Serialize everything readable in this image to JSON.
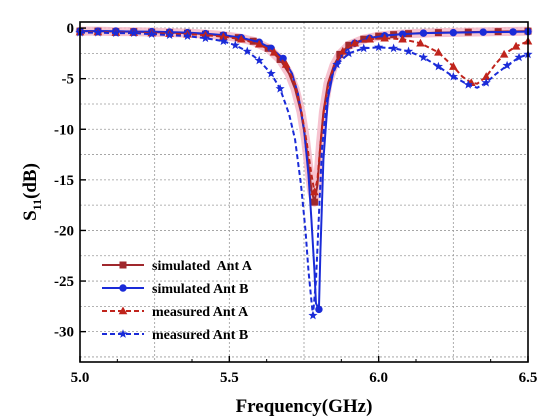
{
  "chart_data": {
    "type": "line",
    "xlabel": "Frequency(GHz)",
    "ylabel_main": "S",
    "ylabel_sub": "11",
    "ylabel_unit": "(dB)",
    "xlim": [
      5.0,
      6.5
    ],
    "ylim": [
      -33,
      0.6
    ],
    "x_ticks": [
      5.0,
      5.5,
      6.0,
      6.5
    ],
    "x_tick_labels": [
      "5.0",
      "5.5",
      "6.0",
      "6.5"
    ],
    "y_ticks": [
      0,
      -5,
      -10,
      -15,
      -20,
      -25,
      -30
    ],
    "y_tick_labels": [
      "0",
      "-5",
      "-10",
      "-15",
      "-20",
      "-25",
      "-30"
    ],
    "grid": true,
    "legend_position": "bottom-left",
    "series": [
      {
        "name": "simulated  Ant A",
        "color": "#a0282d",
        "dash": "solid",
        "marker": "square",
        "glow": "#f4b8c8",
        "x": [
          5.0,
          5.06,
          5.12,
          5.18,
          5.24,
          5.3,
          5.36,
          5.42,
          5.48,
          5.53,
          5.58,
          5.63,
          5.67,
          5.7,
          5.72,
          5.74,
          5.755,
          5.765,
          5.775,
          5.785,
          5.795,
          5.805,
          5.815,
          5.83,
          5.85,
          5.87,
          5.9,
          5.95,
          6.0,
          6.05,
          6.1,
          6.2,
          6.3,
          6.4,
          6.5
        ],
        "y": [
          -0.3,
          -0.3,
          -0.35,
          -0.35,
          -0.4,
          -0.45,
          -0.5,
          -0.6,
          -0.75,
          -0.95,
          -1.3,
          -2.0,
          -3.1,
          -4.5,
          -6.0,
          -8.3,
          -11.0,
          -13.5,
          -16.0,
          -17.2,
          -15.5,
          -11.5,
          -8.3,
          -5.5,
          -3.7,
          -2.6,
          -1.7,
          -1.1,
          -0.8,
          -0.65,
          -0.55,
          -0.45,
          -0.4,
          -0.35,
          -0.3
        ],
        "marker_x": [
          5.0,
          5.06,
          5.12,
          5.18,
          5.24,
          5.3,
          5.36,
          5.42,
          5.48,
          5.53,
          5.58,
          5.63,
          5.67,
          5.785,
          5.87,
          5.9,
          5.95,
          6.0,
          6.05,
          6.1,
          6.2,
          6.3,
          6.4,
          6.5
        ]
      },
      {
        "name": "simulated Ant B",
        "color": "#1a2bd8",
        "dash": "solid",
        "marker": "circle",
        "x": [
          5.0,
          5.06,
          5.12,
          5.18,
          5.24,
          5.3,
          5.36,
          5.42,
          5.48,
          5.54,
          5.6,
          5.64,
          5.68,
          5.71,
          5.73,
          5.75,
          5.765,
          5.775,
          5.785,
          5.79,
          5.8,
          5.805,
          5.815,
          5.83,
          5.85,
          5.88,
          5.92,
          5.97,
          6.02,
          6.08,
          6.15,
          6.25,
          6.35,
          6.45,
          6.5
        ],
        "y": [
          -0.3,
          -0.3,
          -0.3,
          -0.35,
          -0.35,
          -0.4,
          -0.45,
          -0.55,
          -0.7,
          -0.95,
          -1.4,
          -2.0,
          -3.0,
          -4.5,
          -6.5,
          -10.0,
          -14.5,
          -19.0,
          -24.0,
          -27.2,
          -27.8,
          -22.0,
          -13.0,
          -7.0,
          -4.0,
          -2.5,
          -1.5,
          -1.0,
          -0.75,
          -0.6,
          -0.5,
          -0.45,
          -0.4,
          -0.38,
          -0.35
        ],
        "marker_x": [
          5.0,
          5.06,
          5.12,
          5.18,
          5.24,
          5.3,
          5.36,
          5.42,
          5.48,
          5.54,
          5.6,
          5.64,
          5.68,
          5.8,
          5.92,
          5.97,
          6.02,
          6.08,
          6.15,
          6.25,
          6.35,
          6.45,
          6.5
        ]
      },
      {
        "name": "measured Ant A",
        "color": "#c0241c",
        "dash": "dashed",
        "marker": "triangle",
        "x": [
          5.0,
          5.06,
          5.12,
          5.18,
          5.24,
          5.3,
          5.36,
          5.42,
          5.48,
          5.54,
          5.6,
          5.65,
          5.69,
          5.72,
          5.74,
          5.76,
          5.775,
          5.785,
          5.795,
          5.805,
          5.815,
          5.83,
          5.85,
          5.88,
          5.92,
          5.97,
          6.02,
          6.08,
          6.14,
          6.2,
          6.25,
          6.28,
          6.31,
          6.33,
          6.36,
          6.39,
          6.42,
          6.46,
          6.5
        ],
        "y": [
          -0.4,
          -0.4,
          -0.45,
          -0.45,
          -0.5,
          -0.55,
          -0.6,
          -0.7,
          -0.85,
          -1.1,
          -1.6,
          -2.4,
          -3.6,
          -5.5,
          -8.0,
          -11.5,
          -14.5,
          -16.2,
          -15.0,
          -11.5,
          -8.5,
          -5.8,
          -3.8,
          -2.3,
          -1.5,
          -1.1,
          -1.0,
          -1.1,
          -1.5,
          -2.4,
          -3.8,
          -4.8,
          -5.4,
          -5.5,
          -4.8,
          -3.6,
          -2.6,
          -1.8,
          -1.3
        ],
        "marker_x": [
          5.0,
          5.06,
          5.12,
          5.18,
          5.24,
          5.3,
          5.36,
          5.42,
          5.48,
          5.54,
          5.6,
          5.65,
          5.69,
          5.785,
          5.88,
          5.92,
          5.97,
          6.02,
          6.08,
          6.14,
          6.2,
          6.25,
          6.31,
          6.36,
          6.42,
          6.46,
          6.5
        ]
      },
      {
        "name": "measured Ant B",
        "color": "#1a2bd8",
        "dash": "dashed",
        "marker": "star",
        "x": [
          5.0,
          5.06,
          5.12,
          5.18,
          5.24,
          5.3,
          5.36,
          5.42,
          5.48,
          5.52,
          5.56,
          5.6,
          5.64,
          5.67,
          5.7,
          5.72,
          5.74,
          5.755,
          5.765,
          5.775,
          5.78,
          5.79,
          5.8,
          5.81,
          5.825,
          5.84,
          5.86,
          5.9,
          5.95,
          6.0,
          6.05,
          6.1,
          6.15,
          6.2,
          6.25,
          6.3,
          6.33,
          6.36,
          6.39,
          6.43,
          6.47,
          6.5
        ],
        "y": [
          -0.45,
          -0.45,
          -0.5,
          -0.5,
          -0.6,
          -0.7,
          -0.8,
          -1.0,
          -1.3,
          -1.7,
          -2.3,
          -3.2,
          -4.5,
          -6.0,
          -8.5,
          -11.0,
          -15.5,
          -20.0,
          -24.0,
          -27.0,
          -28.4,
          -25.0,
          -18.5,
          -12.0,
          -7.5,
          -5.0,
          -3.6,
          -2.5,
          -2.0,
          -1.9,
          -2.0,
          -2.3,
          -2.9,
          -3.8,
          -4.8,
          -5.6,
          -5.9,
          -5.4,
          -4.6,
          -3.7,
          -2.9,
          -2.6
        ],
        "marker_x": [
          5.0,
          5.06,
          5.12,
          5.18,
          5.24,
          5.3,
          5.36,
          5.42,
          5.48,
          5.52,
          5.56,
          5.6,
          5.64,
          5.67,
          5.78,
          5.86,
          5.9,
          5.95,
          6.0,
          6.05,
          6.1,
          6.15,
          6.2,
          6.25,
          6.3,
          6.36,
          6.43,
          6.47,
          6.5
        ]
      }
    ]
  }
}
